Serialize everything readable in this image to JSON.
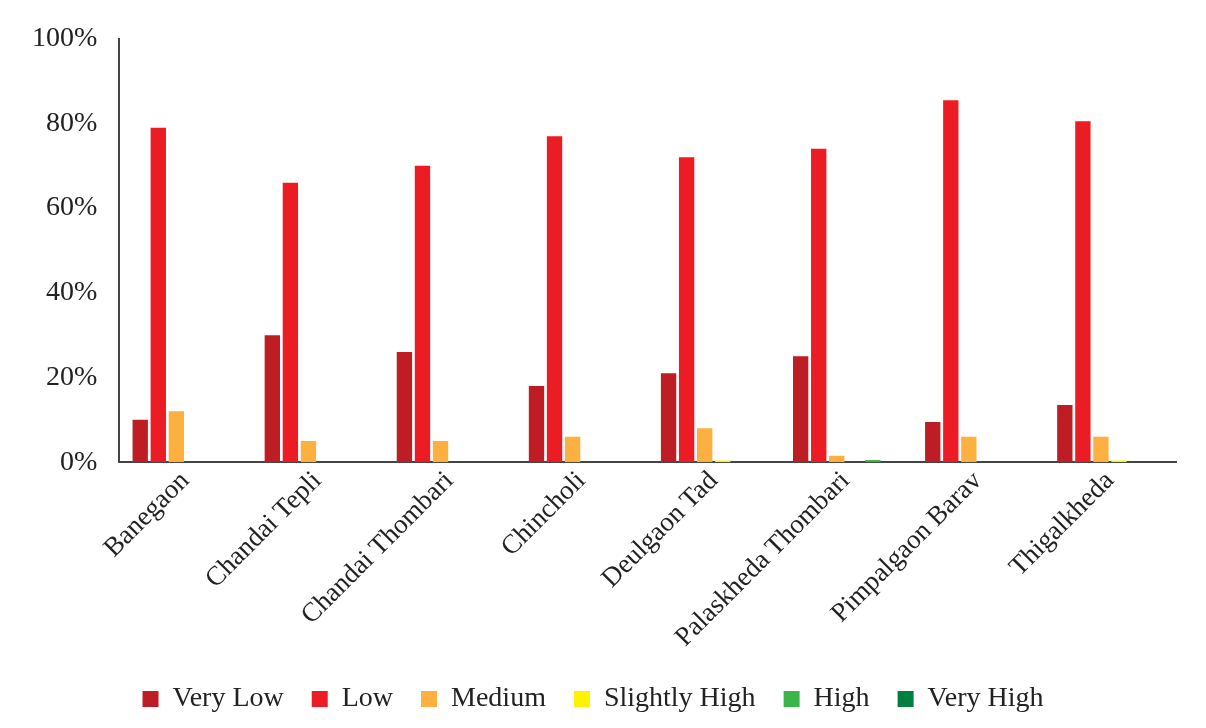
{
  "chart_data": {
    "type": "bar",
    "categories": [
      "Banegaon",
      "Chandai Tepli",
      "Chandai Thombari",
      "Chincholi",
      "Deulgaon Tad",
      "Palaskheda Thombari",
      "Pimpalgaon Barav",
      "Thigalkheda"
    ],
    "series": [
      {
        "name": "Very Low",
        "color": "#be1e23",
        "values": [
          10,
          30,
          26,
          18,
          21,
          25,
          9.5,
          13.5
        ]
      },
      {
        "name": "Low",
        "color": "#ec1c24",
        "values": [
          79,
          66,
          70,
          77,
          72,
          74,
          85.5,
          80.5
        ]
      },
      {
        "name": "Medium",
        "color": "#fbb040",
        "values": [
          12,
          5,
          5,
          6,
          8,
          1.5,
          6,
          6
        ]
      },
      {
        "name": "Slightly High",
        "color": "#fff200",
        "values": [
          null,
          null,
          null,
          null,
          0.4,
          null,
          null,
          0.4
        ]
      },
      {
        "name": "High",
        "color": "#39b54a",
        "values": [
          null,
          null,
          null,
          null,
          null,
          0.5,
          null,
          null
        ]
      },
      {
        "name": "Very High",
        "color": "#007f3f",
        "values": [
          null,
          null,
          null,
          null,
          null,
          null,
          null,
          null
        ]
      }
    ],
    "ylim": [
      0,
      100
    ],
    "yticks": [
      {
        "value": 0,
        "label": "0%"
      },
      {
        "value": 20,
        "label": "20%"
      },
      {
        "value": 40,
        "label": "40%"
      },
      {
        "value": 60,
        "label": "60%"
      },
      {
        "value": 80,
        "label": "80%"
      },
      {
        "value": 100,
        "label": "100%"
      }
    ],
    "grid": false,
    "legend": "bottom"
  }
}
